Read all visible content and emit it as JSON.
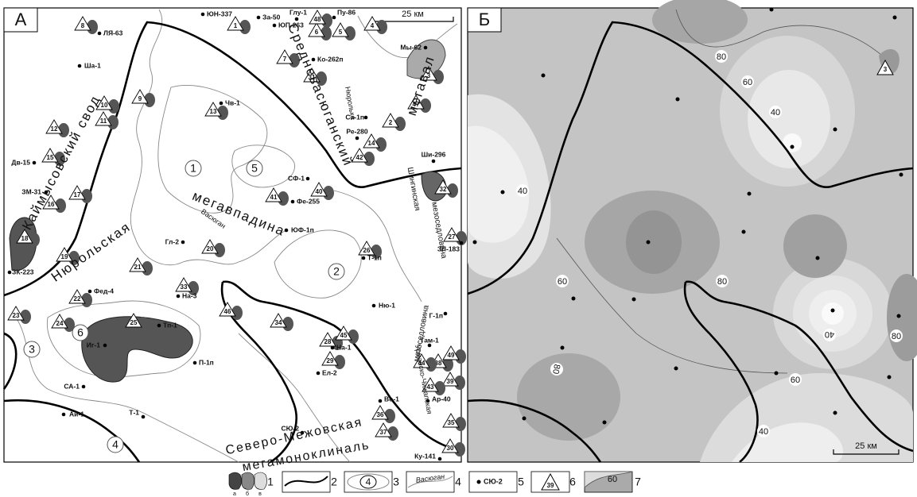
{
  "panel_a": {
    "label": "А",
    "scale": "25 км",
    "regions": [
      "Каймысовский свод",
      "Нюрольская",
      "мегавпадина",
      "Средневасюганский",
      "мегавал",
      "Северо-Межовская",
      "мегамоноклиналь",
      "Шингинская",
      "мезоседловина",
      "Урманско-Чижапская",
      "мезоседловина",
      "Нюролька",
      "Васюган"
    ],
    "wells": [
      "ЛЯ-63",
      "Ша-1",
      "Дв-15",
      "ЗМ-31",
      "ЮН-337",
      "За-50",
      "ЮП-263",
      "Глу-1",
      "Пу-86",
      "Ко-262п",
      "Чв-1",
      "Ре-280",
      "Са-1п",
      "Мы-62",
      "Ши-296",
      "СФ-1",
      "Фе-255",
      "ЮФ-1п",
      "Гл-2",
      "Т-1п",
      "ЗЛ-183",
      "Ню-1",
      "Г-1п",
      "Фед-4",
      "На-3",
      "Тп-1",
      "Иг-1",
      "П-1п",
      "На-1",
      "Ел-2",
      "Там-1",
      "СА-1",
      "Ай-1",
      "Т-1",
      "СЮ-2",
      "Во-1",
      "Ар-40",
      "Ку-141",
      "ЗК-223"
    ],
    "objects": [
      "1",
      "2",
      "3",
      "4",
      "5",
      "6",
      "7",
      "8",
      "9",
      "10",
      "11",
      "12",
      "13",
      "14",
      "15",
      "16",
      "17",
      "18",
      "19",
      "20",
      "21",
      "22",
      "23",
      "24",
      "25",
      "26",
      "27",
      "28",
      "29",
      "30",
      "31",
      "32",
      "33",
      "34",
      "35",
      "36",
      "37",
      "38",
      "39",
      "40",
      "41",
      "42",
      "43",
      "44",
      "45",
      "46",
      "47",
      "48",
      "49"
    ],
    "zones": [
      "1",
      "2",
      "3",
      "4",
      "5",
      "6"
    ]
  },
  "panel_b": {
    "label": "Б",
    "scale": "25 км",
    "isolines": [
      "80",
      "60",
      "40",
      "40",
      "60",
      "80",
      "40",
      "60",
      "80",
      "40",
      "80"
    ],
    "objects": [
      "3"
    ]
  },
  "legend": {
    "items": [
      "1",
      "2",
      "3",
      "4",
      "5",
      "6",
      "7"
    ],
    "subtypes": [
      "а",
      "б",
      "в"
    ],
    "zone_sample": "4",
    "river_sample": "Васюган",
    "well_sample": "СЮ-2",
    "object_sample": "39",
    "isoline_sample": "60"
  }
}
